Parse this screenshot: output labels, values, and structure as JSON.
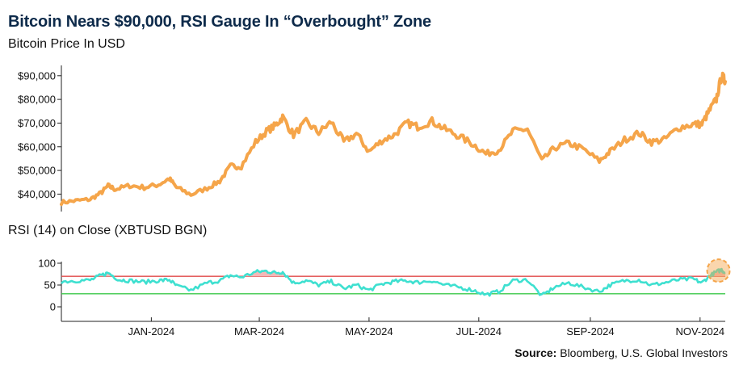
{
  "header": {
    "title": "Bitcoin Nears $90,000, RSI Gauge In “Overbought” Zone",
    "subtitle": "Bitcoin Price In USD"
  },
  "rsi_panel": {
    "title": "RSI (14) on Close (XBTUSD BGN)"
  },
  "footer": {
    "source_label": "Source:",
    "source_text": " Bloomberg, U.S. Global Investors"
  },
  "colors": {
    "price_line": "#f5a54a",
    "rsi_line": "#3ee0d0",
    "overbought_line": "#e04a4a",
    "oversold_line": "#3cc84a",
    "overbought_fill": "#f4b8b8",
    "highlight_circle": "#f5a54a"
  },
  "chart_data": [
    {
      "type": "line",
      "id": "price",
      "ylabel": "",
      "ylim": [
        34000,
        93000
      ],
      "yticks": [
        40000,
        50000,
        60000,
        70000,
        80000,
        90000
      ],
      "ytick_labels": [
        "$40,000",
        "$50,000",
        "$60,000",
        "$70,000",
        "$80,000",
        "$90,000"
      ],
      "x_range": [
        "2023-11-12",
        "2024-11-15"
      ],
      "series": [
        {
          "name": "",
          "x": [
            "2023-11-12",
            "2023-11-20",
            "2023-11-28",
            "2023-12-04",
            "2023-12-08",
            "2023-12-12",
            "2023-12-20",
            "2023-12-28",
            "2024-01-05",
            "2024-01-11",
            "2024-01-15",
            "2024-01-23",
            "2024-02-01",
            "2024-02-08",
            "2024-02-14",
            "2024-02-20",
            "2024-02-28",
            "2024-03-05",
            "2024-03-10",
            "2024-03-14",
            "2024-03-20",
            "2024-03-27",
            "2024-04-03",
            "2024-04-10",
            "2024-04-17",
            "2024-04-24",
            "2024-05-01",
            "2024-05-08",
            "2024-05-15",
            "2024-05-22",
            "2024-05-28",
            "2024-06-05",
            "2024-06-12",
            "2024-06-20",
            "2024-06-28",
            "2024-07-05",
            "2024-07-12",
            "2024-07-20",
            "2024-07-28",
            "2024-08-05",
            "2024-08-12",
            "2024-08-20",
            "2024-08-28",
            "2024-09-06",
            "2024-09-12",
            "2024-09-20",
            "2024-09-28",
            "2024-10-05",
            "2024-10-12",
            "2024-10-20",
            "2024-10-28",
            "2024-11-02",
            "2024-11-06",
            "2024-11-10",
            "2024-11-13",
            "2024-11-15"
          ],
          "values": [
            36500,
            37200,
            37800,
            40500,
            43500,
            42000,
            43600,
            42800,
            44000,
            46500,
            42800,
            39800,
            42500,
            45500,
            51800,
            51800,
            62000,
            66500,
            69000,
            72500,
            65000,
            70500,
            66000,
            70500,
            62000,
            65500,
            58000,
            62500,
            65000,
            70000,
            68500,
            70800,
            67500,
            64500,
            61000,
            57000,
            58500,
            66500,
            67500,
            54000,
            59500,
            61500,
            59000,
            54000,
            58000,
            63000,
            65800,
            62000,
            63000,
            68000,
            69500,
            69500,
            75000,
            80000,
            90000,
            87500
          ]
        }
      ]
    },
    {
      "type": "line",
      "id": "rsi",
      "ylim": [
        0,
        100
      ],
      "yticks": [
        0,
        50,
        100
      ],
      "ytick_labels": [
        "0",
        "50",
        "100"
      ],
      "reference_lines": [
        70,
        30
      ],
      "x_range": [
        "2023-11-12",
        "2024-11-15"
      ],
      "xticks": [
        "2024-01-01",
        "2024-03-01",
        "2024-05-01",
        "2024-07-01",
        "2024-09-01",
        "2024-11-01"
      ],
      "xtick_labels": [
        "JAN-2024",
        "MAR-2024",
        "MAY-2024",
        "JUL-2024",
        "SEP-2024",
        "NOV-2024"
      ],
      "series": [
        {
          "name": "",
          "x": [
            "2023-11-12",
            "2023-11-20",
            "2023-11-28",
            "2023-12-04",
            "2023-12-08",
            "2023-12-14",
            "2023-12-20",
            "2023-12-28",
            "2024-01-05",
            "2024-01-11",
            "2024-01-15",
            "2024-01-23",
            "2024-02-01",
            "2024-02-08",
            "2024-02-14",
            "2024-02-20",
            "2024-02-28",
            "2024-03-05",
            "2024-03-10",
            "2024-03-14",
            "2024-03-20",
            "2024-03-27",
            "2024-04-03",
            "2024-04-10",
            "2024-04-17",
            "2024-04-24",
            "2024-05-01",
            "2024-05-08",
            "2024-05-15",
            "2024-05-22",
            "2024-05-28",
            "2024-06-05",
            "2024-06-12",
            "2024-06-20",
            "2024-06-28",
            "2024-07-05",
            "2024-07-12",
            "2024-07-20",
            "2024-07-28",
            "2024-08-05",
            "2024-08-12",
            "2024-08-20",
            "2024-08-28",
            "2024-09-06",
            "2024-09-12",
            "2024-09-20",
            "2024-09-28",
            "2024-10-05",
            "2024-10-12",
            "2024-10-20",
            "2024-10-28",
            "2024-11-02",
            "2024-11-06",
            "2024-11-10",
            "2024-11-13",
            "2024-11-15"
          ],
          "values": [
            58,
            60,
            61,
            72,
            78,
            62,
            60,
            57,
            60,
            62,
            48,
            38,
            55,
            60,
            72,
            68,
            80,
            82,
            78,
            80,
            55,
            60,
            50,
            58,
            42,
            50,
            38,
            52,
            58,
            60,
            56,
            60,
            50,
            45,
            38,
            28,
            35,
            60,
            62,
            25,
            45,
            55,
            45,
            35,
            50,
            60,
            62,
            50,
            55,
            62,
            64,
            55,
            70,
            80,
            85,
            78
          ]
        }
      ]
    }
  ]
}
